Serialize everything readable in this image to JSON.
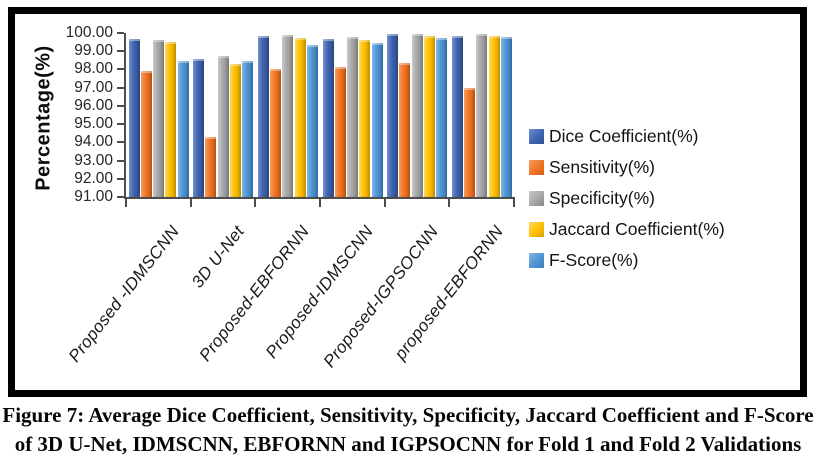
{
  "figure": {
    "caption_line1": "Figure 7: Average Dice Coefficient, Sensitivity, Specificity, Jaccard Coefficient and F-Score",
    "caption_line2": "of 3D U-Net, IDMSCNN, EBFORNN and IGPSOCNN for Fold 1 and Fold 2 Validations"
  },
  "chart_data": {
    "type": "bar",
    "title": "",
    "xlabel": "",
    "ylabel": "Percentage(%)",
    "ylim": [
      91,
      100
    ],
    "ytick_labels": [
      "100.00",
      "99.00",
      "98.00",
      "97.00",
      "96.00",
      "95.00",
      "94.00",
      "93.00",
      "92.00",
      "91.00"
    ],
    "grid": false,
    "legend_position": "right",
    "categories": [
      "Proposed -IDMSCNN",
      "3D U-Net",
      "Proposed-EBFORNN",
      "Proposed-IDMSCNN",
      "Proposed-IGPSOCNN",
      "proposed-EBFORNN"
    ],
    "series": [
      {
        "name": "Dice Coefficient(%)",
        "color": "#3F63B0",
        "color_light": "#7190CE",
        "color_dark": "#30508F",
        "values": [
          99.65,
          98.6,
          99.85,
          99.65,
          99.95,
          99.85
        ]
      },
      {
        "name": "Sensitivity(%)",
        "color": "#F07426",
        "color_light": "#F89C60",
        "color_dark": "#D35C12",
        "values": [
          97.9,
          94.3,
          98.0,
          98.15,
          98.35,
          97.0
        ]
      },
      {
        "name": "Specificity(%)",
        "color": "#A6A6A6",
        "color_light": "#C9C9C9",
        "color_dark": "#8A8A8A",
        "values": [
          99.6,
          98.75,
          99.9,
          99.8,
          99.95,
          99.95
        ]
      },
      {
        "name": "Jaccard Coefficient(%)",
        "color": "#FFBF00",
        "color_light": "#FFD75E",
        "color_dark": "#D9A300",
        "values": [
          99.5,
          98.3,
          99.75,
          99.6,
          99.85,
          99.85
        ]
      },
      {
        "name": "F-Score(%)",
        "color": "#4E95D5",
        "color_light": "#82B6E4",
        "color_dark": "#3C7CB5",
        "values": [
          98.45,
          98.45,
          99.35,
          99.45,
          99.7,
          99.8
        ]
      }
    ]
  }
}
